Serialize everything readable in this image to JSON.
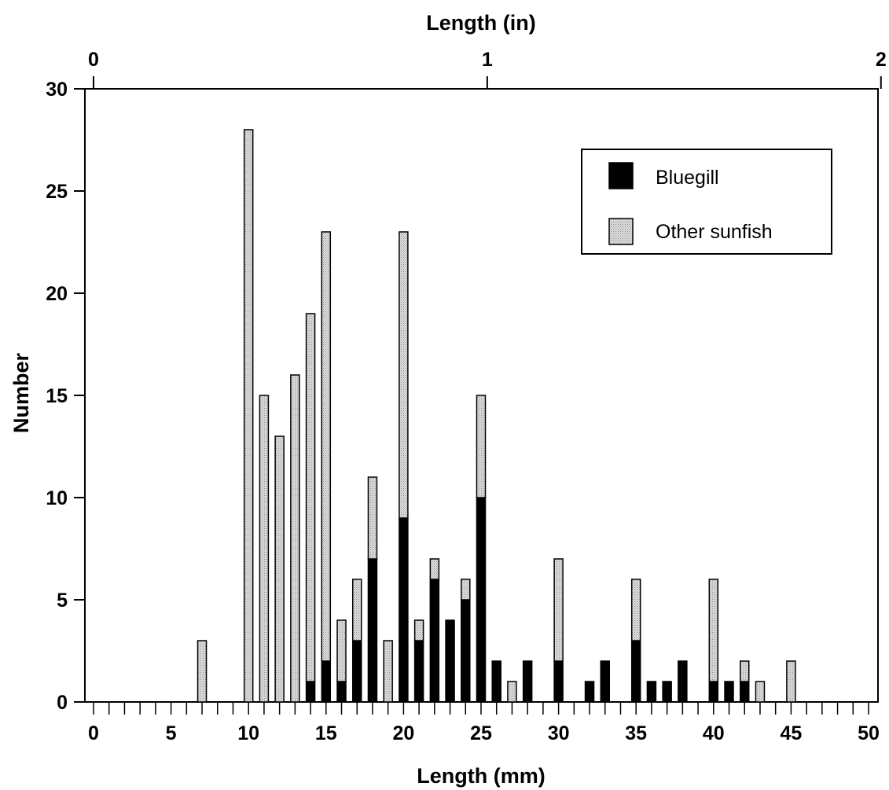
{
  "chart_data": {
    "type": "bar",
    "stacked": true,
    "xlabel": "Length (mm)",
    "x2label": "Length (in)",
    "ylabel": "Number",
    "xlim": [
      0,
      50
    ],
    "ylim": [
      0,
      30
    ],
    "x_ticks": [
      0,
      5,
      10,
      15,
      20,
      25,
      30,
      35,
      40,
      45,
      50
    ],
    "x2_ticks": [
      0,
      1,
      2
    ],
    "y_ticks": [
      0,
      5,
      10,
      15,
      20,
      25,
      30
    ],
    "grid": false,
    "legend_position": "top-right",
    "x": [
      7,
      10,
      11,
      12,
      13,
      14,
      15,
      16,
      17,
      18,
      19,
      20,
      21,
      22,
      23,
      24,
      25,
      26,
      27,
      28,
      30,
      32,
      33,
      35,
      36,
      37,
      38,
      40,
      41,
      42,
      43,
      45
    ],
    "series": [
      {
        "name": "Bluegill",
        "color": "#000000",
        "values": [
          0,
          0,
          0,
          0,
          0,
          1,
          2,
          1,
          3,
          7,
          0,
          9,
          3,
          6,
          4,
          5,
          10,
          2,
          0,
          2,
          2,
          1,
          2,
          3,
          1,
          1,
          2,
          1,
          1,
          1,
          0,
          0
        ]
      },
      {
        "name": "Other sunfish",
        "color": "#d3d3d3",
        "values": [
          3,
          28,
          15,
          13,
          16,
          18,
          21,
          3,
          3,
          4,
          3,
          14,
          1,
          1,
          0,
          1,
          5,
          0,
          1,
          0,
          5,
          0,
          0,
          3,
          0,
          0,
          0,
          5,
          0,
          1,
          1,
          2
        ]
      }
    ]
  }
}
